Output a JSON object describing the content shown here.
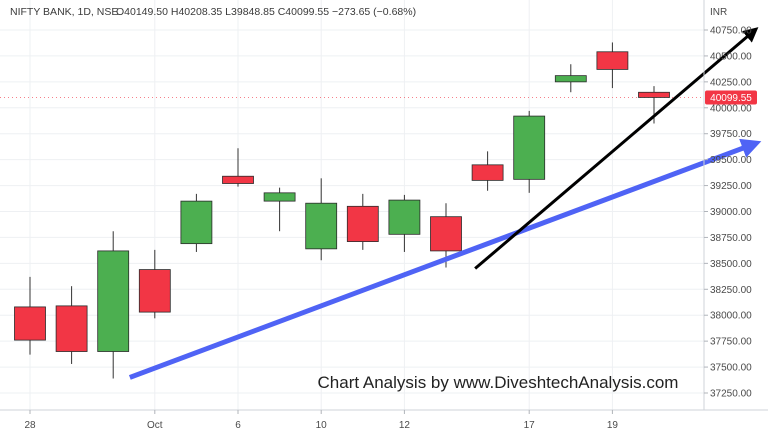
{
  "header": {
    "symbol": "NIFTY BANK, 1D, NSE",
    "ohlc": "O40149.50 H40208.35 L39848.85 C40099.55 −273.65 (−0.68%)"
  },
  "currency": "INR",
  "last_price_label": "40099.55",
  "watermark": "Chart Analysis by www.DiveshtechAnalysis.com",
  "colors": {
    "up": "#4caf50",
    "down": "#f23645",
    "trend_support": "#4f63f5",
    "trend_breakout": "#000000",
    "grid": "#eef0f3",
    "axis_text": "#4a4a4a"
  },
  "chart_data": {
    "type": "candlestick",
    "title": "",
    "xlabel": "",
    "ylabel": "",
    "ylim": [
      37100,
      40900
    ],
    "y_ticks": [
      37250,
      37500,
      37750,
      38000,
      38250,
      38500,
      38750,
      39000,
      39250,
      39500,
      39750,
      40000,
      40250,
      40500,
      40750
    ],
    "y_tick_labels": [
      "37250.00",
      "37500.00",
      "37750.00",
      "38000.00",
      "38250.00",
      "38500.00",
      "38750.00",
      "39000.00",
      "39250.00",
      "39500.00",
      "39750.00",
      "40000.00",
      "40250.00",
      "40500.00",
      "40750.00"
    ],
    "x_tick_labels": [
      {
        "index": 0,
        "label": "28"
      },
      {
        "index": 3,
        "label": "Oct"
      },
      {
        "index": 5,
        "label": "6"
      },
      {
        "index": 7,
        "label": "10"
      },
      {
        "index": 9,
        "label": "12"
      },
      {
        "index": 12,
        "label": "17"
      },
      {
        "index": 14,
        "label": "19"
      }
    ],
    "grid": true,
    "candles": [
      {
        "o": 38080,
        "h": 38370,
        "l": 37620,
        "c": 37760
      },
      {
        "o": 38090,
        "h": 38280,
        "l": 37530,
        "c": 37650
      },
      {
        "o": 37650,
        "h": 38810,
        "l": 37390,
        "c": 38620
      },
      {
        "o": 38440,
        "h": 38630,
        "l": 37970,
        "c": 38030
      },
      {
        "o": 38690,
        "h": 39170,
        "l": 38610,
        "c": 39100
      },
      {
        "o": 39340,
        "h": 39610,
        "l": 39240,
        "c": 39270
      },
      {
        "o": 39100,
        "h": 39230,
        "l": 38810,
        "c": 39180
      },
      {
        "o": 38640,
        "h": 39320,
        "l": 38530,
        "c": 39080
      },
      {
        "o": 39050,
        "h": 39170,
        "l": 38630,
        "c": 38710
      },
      {
        "o": 38780,
        "h": 39160,
        "l": 38610,
        "c": 39110
      },
      {
        "o": 38950,
        "h": 39080,
        "l": 38460,
        "c": 38620
      },
      {
        "o": 39450,
        "h": 39580,
        "l": 39200,
        "c": 39300
      },
      {
        "o": 39310,
        "h": 39970,
        "l": 39180,
        "c": 39920
      },
      {
        "o": 40250,
        "h": 40420,
        "l": 40150,
        "c": 40310
      },
      {
        "o": 40540,
        "h": 40630,
        "l": 40190,
        "c": 40370
      },
      {
        "o": 40149.5,
        "h": 40208.35,
        "l": 39848.85,
        "c": 40099.55
      }
    ],
    "trend_lines": [
      {
        "name": "support",
        "start": {
          "index": 2.4,
          "y": 37400
        },
        "end": {
          "index": 17.4,
          "y": 39650
        },
        "color_key": "trend_support",
        "width": 5
      },
      {
        "name": "breakout",
        "start": {
          "index": 10.7,
          "y": 38450
        },
        "end": {
          "index": 17.4,
          "y": 40740
        },
        "color_key": "trend_breakout",
        "width": 3
      }
    ]
  }
}
